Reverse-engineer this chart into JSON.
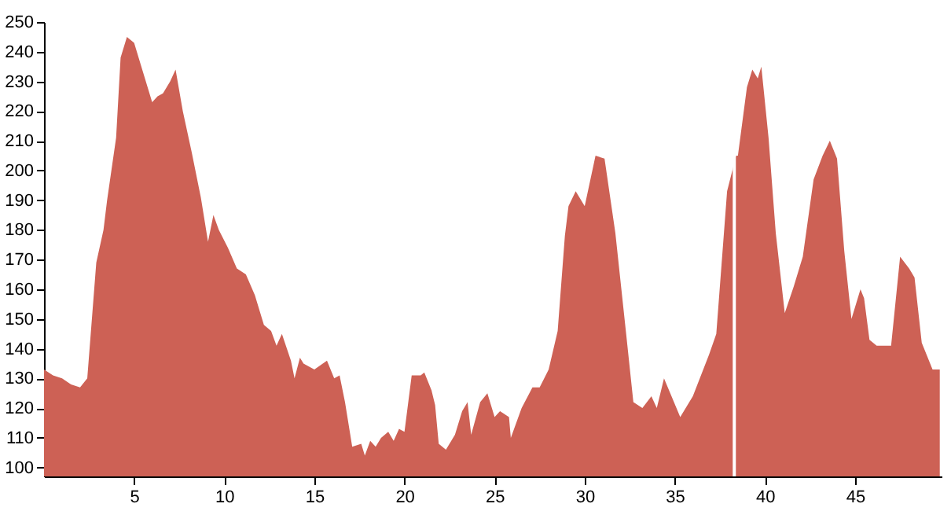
{
  "chart_data": {
    "type": "area",
    "color": "#cd6155",
    "x": [
      0,
      0.5,
      1,
      1.5,
      2.0,
      2.4,
      2.9,
      3.3,
      3.5,
      4.0,
      4.25,
      4.6,
      5.0,
      5.5,
      6.0,
      6.3,
      6.6,
      7.0,
      7.3,
      7.7,
      8.2,
      8.7,
      9.1,
      9.4,
      9.7,
      10.2,
      10.7,
      11.2,
      11.7,
      12.2,
      12.6,
      12.9,
      13.2,
      13.7,
      13.9,
      14.2,
      14.4,
      15.0,
      15.7,
      16.1,
      16.4,
      16.7,
      17.1,
      17.6,
      17.8,
      18.1,
      18.4,
      18.7,
      19.1,
      19.4,
      19.7,
      20.0,
      20.4,
      20.9,
      21.1,
      21.5,
      21.7,
      21.9,
      22.3,
      22.8,
      23.2,
      23.5,
      23.7,
      24.2,
      24.6,
      25.0,
      25.3,
      25.8,
      25.9,
      26.5,
      27.1,
      27.5,
      28.0,
      28.5,
      28.9,
      29.1,
      29.5,
      30.0,
      30.6,
      31.1,
      31.7,
      32.3,
      32.7,
      33.2,
      33.7,
      34.0,
      34.4,
      35.3,
      36.0,
      36.9,
      37.3,
      37.9,
      38.4,
      38.5,
      39.0,
      39.3,
      39.6,
      39.8,
      40.2,
      40.6,
      41.1,
      41.6,
      42.1,
      42.7,
      43.2,
      43.6,
      44.0,
      44.4,
      44.8,
      45.3,
      45.5,
      45.8,
      46.2,
      47.0,
      47.5,
      48.0,
      48.3,
      48.7,
      49.3,
      49.7
    ],
    "values": [
      133,
      131,
      130,
      128,
      127,
      130,
      169,
      180,
      190,
      211,
      238,
      245,
      243,
      233,
      223,
      225,
      226,
      230,
      234,
      220,
      206,
      191,
      176,
      185,
      180,
      174,
      167,
      165,
      158,
      148,
      146,
      141,
      145,
      136,
      130,
      137,
      135,
      133,
      136,
      130,
      131,
      122,
      107,
      108,
      104,
      109,
      107,
      110,
      112,
      109,
      113,
      112,
      131,
      131,
      132,
      126,
      121,
      108,
      106,
      111,
      119,
      122,
      111,
      122,
      125,
      117,
      119,
      117,
      110,
      120,
      127,
      127,
      133,
      146,
      178,
      188,
      193,
      188,
      205,
      204,
      179,
      145,
      122,
      120,
      124,
      120,
      130,
      117,
      124,
      138,
      145,
      193,
      205,
      205,
      228,
      234,
      231,
      235,
      211,
      179,
      152,
      161,
      171,
      197,
      205,
      210,
      204,
      173,
      150,
      160,
      157,
      143,
      141,
      141,
      171,
      167,
      164,
      142,
      133,
      133
    ],
    "xlim": [
      0,
      49.8
    ],
    "xticks": [
      5,
      10,
      15,
      20,
      25,
      30,
      35,
      40,
      45
    ],
    "ylim": [
      97,
      250
    ],
    "yticks": [
      100,
      110,
      120,
      130,
      140,
      150,
      160,
      170,
      180,
      190,
      200,
      210,
      220,
      230,
      240,
      250
    ],
    "ref_lines": [
      {
        "axis": "x",
        "value": 38.3,
        "color": "#ffffff"
      }
    ],
    "grid": false
  }
}
